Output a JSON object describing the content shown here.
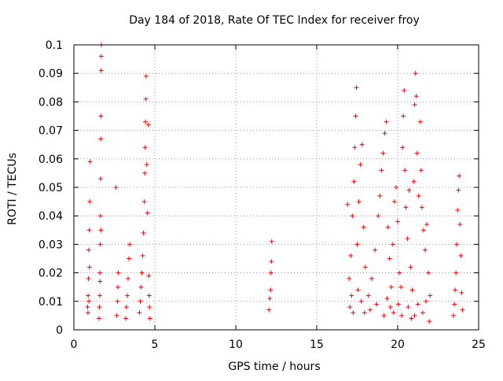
{
  "chart_data": {
    "type": "scatter",
    "title": "Day 184 of 2018, Rate Of TEC Index for receiver froy",
    "xlabel": "GPS time / hours",
    "ylabel": "ROTI / TECUs",
    "xlim": [
      0,
      25
    ],
    "ylim": [
      0,
      0.1
    ],
    "x_ticks": [
      0,
      5,
      10,
      15,
      20,
      25
    ],
    "y_ticks": [
      0,
      0.01,
      0.02,
      0.03,
      0.04,
      0.05,
      0.06,
      0.07,
      0.08,
      0.09,
      0.1
    ],
    "x_tick_labels": [
      "0",
      "5",
      "10",
      "15",
      "20",
      "25"
    ],
    "y_tick_labels": [
      "0",
      "0.01",
      "0.02",
      "0.03",
      "0.04",
      "0.05",
      "0.06",
      "0.07",
      "0.08",
      "0.09",
      "0.1"
    ],
    "grid": true,
    "marker": "+",
    "color": "#ff0000",
    "series": [
      {
        "name": "ROTI",
        "points": [
          [
            0.85,
            0.008
          ],
          [
            0.88,
            0.012
          ],
          [
            0.9,
            0.018
          ],
          [
            0.92,
            0.028
          ],
          [
            0.95,
            0.035
          ],
          [
            0.98,
            0.045
          ],
          [
            1.0,
            0.059
          ],
          [
            0.87,
            0.006
          ],
          [
            0.93,
            0.01
          ],
          [
            0.96,
            0.022
          ],
          [
            1.55,
            0.004
          ],
          [
            1.58,
            0.008
          ],
          [
            1.6,
            0.012
          ],
          [
            1.62,
            0.017
          ],
          [
            1.63,
            0.03
          ],
          [
            1.64,
            0.04
          ],
          [
            1.65,
            0.053
          ],
          [
            1.66,
            0.067
          ],
          [
            1.67,
            0.075
          ],
          [
            1.68,
            0.091
          ],
          [
            1.69,
            0.096
          ],
          [
            1.7,
            0.1
          ],
          [
            1.61,
            0.02
          ],
          [
            1.67,
            0.035
          ],
          [
            2.6,
            0.05
          ],
          [
            2.65,
            0.005
          ],
          [
            2.7,
            0.01
          ],
          [
            2.72,
            0.015
          ],
          [
            2.75,
            0.02
          ],
          [
            3.2,
            0.004
          ],
          [
            3.25,
            0.008
          ],
          [
            3.3,
            0.012
          ],
          [
            3.35,
            0.018
          ],
          [
            3.4,
            0.025
          ],
          [
            3.45,
            0.03
          ],
          [
            4.05,
            0.006
          ],
          [
            4.1,
            0.01
          ],
          [
            4.15,
            0.015
          ],
          [
            4.2,
            0.02
          ],
          [
            4.25,
            0.026
          ],
          [
            4.3,
            0.034
          ],
          [
            4.35,
            0.045
          ],
          [
            4.38,
            0.055
          ],
          [
            4.4,
            0.064
          ],
          [
            4.42,
            0.073
          ],
          [
            4.45,
            0.081
          ],
          [
            4.46,
            0.089
          ],
          [
            4.5,
            0.058
          ],
          [
            4.55,
            0.041
          ],
          [
            4.6,
            0.072
          ],
          [
            4.63,
            0.019
          ],
          [
            4.65,
            0.012
          ],
          [
            4.67,
            0.008
          ],
          [
            4.7,
            0.004
          ],
          [
            12.05,
            0.007
          ],
          [
            12.1,
            0.011
          ],
          [
            12.15,
            0.014
          ],
          [
            12.17,
            0.02
          ],
          [
            12.2,
            0.024
          ],
          [
            12.22,
            0.031
          ],
          [
            16.9,
            0.044
          ],
          [
            17.0,
            0.018
          ],
          [
            17.1,
            0.026
          ],
          [
            17.2,
            0.04
          ],
          [
            17.3,
            0.052
          ],
          [
            17.35,
            0.064
          ],
          [
            17.4,
            0.075
          ],
          [
            17.45,
            0.085
          ],
          [
            17.5,
            0.03
          ],
          [
            17.6,
            0.045
          ],
          [
            17.7,
            0.058
          ],
          [
            17.8,
            0.065
          ],
          [
            17.9,
            0.036
          ],
          [
            18.0,
            0.022
          ],
          [
            17.05,
            0.008
          ],
          [
            17.15,
            0.012
          ],
          [
            17.25,
            0.006
          ],
          [
            17.55,
            0.014
          ],
          [
            17.75,
            0.01
          ],
          [
            17.95,
            0.006
          ],
          [
            18.2,
            0.012
          ],
          [
            18.4,
            0.018
          ],
          [
            18.6,
            0.028
          ],
          [
            18.8,
            0.04
          ],
          [
            18.9,
            0.047
          ],
          [
            19.0,
            0.056
          ],
          [
            19.1,
            0.062
          ],
          [
            19.2,
            0.069
          ],
          [
            19.3,
            0.073
          ],
          [
            19.4,
            0.036
          ],
          [
            19.5,
            0.025
          ],
          [
            19.6,
            0.015
          ],
          [
            18.3,
            0.007
          ],
          [
            18.7,
            0.009
          ],
          [
            19.15,
            0.005
          ],
          [
            19.35,
            0.011
          ],
          [
            19.55,
            0.008
          ],
          [
            19.7,
            0.03
          ],
          [
            19.8,
            0.045
          ],
          [
            19.9,
            0.05
          ],
          [
            20.0,
            0.038
          ],
          [
            20.1,
            0.02
          ],
          [
            20.2,
            0.015
          ],
          [
            20.3,
            0.064
          ],
          [
            20.35,
            0.075
          ],
          [
            20.4,
            0.084
          ],
          [
            20.45,
            0.056
          ],
          [
            20.5,
            0.043
          ],
          [
            20.6,
            0.032
          ],
          [
            20.7,
            0.049
          ],
          [
            20.8,
            0.022
          ],
          [
            20.9,
            0.014
          ],
          [
            19.75,
            0.006
          ],
          [
            20.05,
            0.009
          ],
          [
            20.25,
            0.005
          ],
          [
            20.65,
            0.008
          ],
          [
            20.85,
            0.004
          ],
          [
            21.0,
            0.052
          ],
          [
            21.05,
            0.079
          ],
          [
            21.1,
            0.09
          ],
          [
            21.15,
            0.082
          ],
          [
            21.2,
            0.062
          ],
          [
            21.3,
            0.047
          ],
          [
            21.4,
            0.073
          ],
          [
            21.45,
            0.056
          ],
          [
            21.5,
            0.043
          ],
          [
            21.6,
            0.035
          ],
          [
            21.7,
            0.028
          ],
          [
            21.8,
            0.037
          ],
          [
            21.9,
            0.02
          ],
          [
            22.0,
            0.012
          ],
          [
            21.05,
            0.005
          ],
          [
            21.25,
            0.009
          ],
          [
            21.55,
            0.006
          ],
          [
            21.75,
            0.01
          ],
          [
            21.95,
            0.003
          ],
          [
            23.45,
            0.005
          ],
          [
            23.5,
            0.009
          ],
          [
            23.55,
            0.014
          ],
          [
            23.6,
            0.02
          ],
          [
            23.65,
            0.03
          ],
          [
            23.7,
            0.042
          ],
          [
            23.75,
            0.049
          ],
          [
            23.8,
            0.054
          ],
          [
            23.85,
            0.037
          ],
          [
            23.9,
            0.026
          ],
          [
            23.95,
            0.013
          ],
          [
            24.0,
            0.007
          ]
        ]
      }
    ]
  }
}
